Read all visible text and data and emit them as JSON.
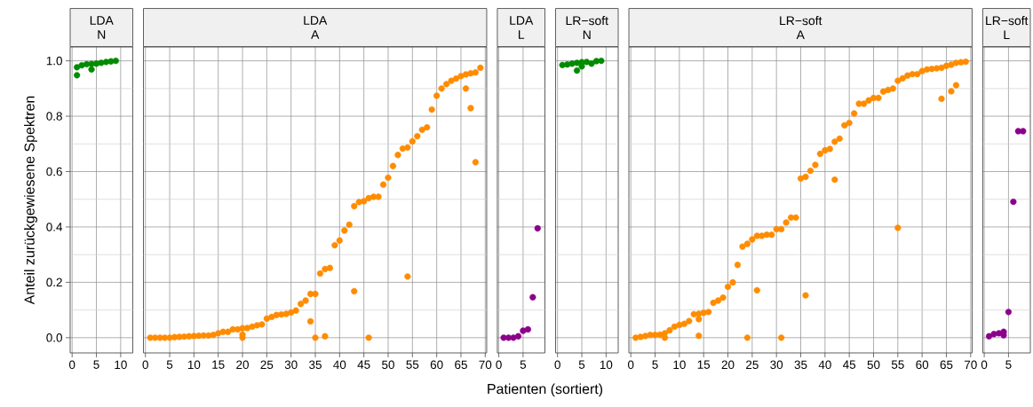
{
  "chart_data": [
    {
      "type": "scatter",
      "title": "LDA",
      "subtitle": "N",
      "ylabel": "Anteil zurückgewiesene Spektren",
      "color": "#008b00",
      "marker": "circle",
      "grid": true,
      "xlim": [
        -0.4,
        12.5
      ],
      "ylim": [
        -0.055,
        1.05
      ],
      "xticks": [
        0,
        5,
        10
      ],
      "yticks": [
        {
          "value": 0,
          "label": "0.0"
        },
        {
          "value": 0.1,
          "label": null
        },
        0.2,
        {
          "value": 0.3,
          "label": null
        },
        0.4,
        {
          "value": 0.5,
          "label": null
        },
        0.6,
        {
          "value": 0.7,
          "label": null
        },
        0.8,
        {
          "value": 0.9,
          "label": null
        },
        {
          "value": 1,
          "label": "1.0"
        }
      ],
      "x": [
        1,
        1,
        2,
        3,
        4,
        4,
        5,
        6,
        7,
        8,
        9
      ],
      "values": [
        0.948,
        0.977,
        0.984,
        0.988,
        0.989,
        0.969,
        0.99,
        0.993,
        0.996,
        0.998,
        1.0
      ]
    },
    {
      "type": "scatter",
      "title": "LDA",
      "subtitle": "A",
      "color": "#ff8c00",
      "marker": "circle",
      "grid": true,
      "tick_labels": "x",
      "xlim": [
        -0.4,
        70.3
      ],
      "ylim": [
        -0.055,
        1.05
      ],
      "xticks": [
        0,
        5,
        10,
        15,
        20,
        25,
        30,
        35,
        40,
        45,
        50,
        55,
        60,
        65,
        70
      ],
      "yticks": [
        0,
        {
          "value": 0.1,
          "label": null
        },
        0.2,
        {
          "value": 0.3,
          "label": null
        },
        0.4,
        {
          "value": 0.5,
          "label": null
        },
        0.6,
        {
          "value": 0.7,
          "label": null
        },
        0.8,
        {
          "value": 0.9,
          "label": null
        },
        1
      ],
      "x": [
        1,
        2,
        3,
        4,
        5,
        6,
        7,
        8,
        9,
        10,
        11,
        12,
        13,
        14,
        15,
        16,
        17,
        18,
        19,
        20,
        21,
        22,
        23,
        24,
        25,
        26,
        27,
        28,
        29,
        30,
        31,
        32,
        33,
        34,
        35,
        36,
        37,
        38,
        39,
        40,
        41,
        42,
        43,
        44,
        45,
        46,
        47,
        48,
        49,
        50,
        51,
        52,
        53,
        54,
        55,
        56,
        57,
        58,
        59,
        60,
        61,
        62,
        63,
        64,
        65,
        66,
        67,
        68,
        69,
        20,
        20,
        34,
        35,
        37,
        43,
        46,
        54,
        66,
        67,
        68
      ],
      "values": [
        0,
        0,
        0,
        0,
        0,
        0.002,
        0.003,
        0.004,
        0.005,
        0.006,
        0.007,
        0.008,
        0.008,
        0.01,
        0.016,
        0.021,
        0.021,
        0.03,
        0.03,
        0.034,
        0.035,
        0.04,
        0.045,
        0.048,
        0.069,
        0.075,
        0.082,
        0.084,
        0.086,
        0.091,
        0.098,
        0.122,
        0.134,
        0.158,
        0.158,
        0.232,
        0.248,
        0.252,
        0.334,
        0.351,
        0.387,
        0.408,
        0.475,
        0.49,
        0.493,
        0.504,
        0.509,
        0.509,
        0.553,
        0.578,
        0.62,
        0.66,
        0.683,
        0.687,
        0.709,
        0.728,
        0.751,
        0.76,
        0.824,
        0.874,
        0.9,
        0.916,
        0.928,
        0.936,
        0.945,
        0.951,
        0.955,
        0.958,
        0.975,
        0,
        0.011,
        0.059,
        0,
        0.005,
        0.168,
        0,
        0.221,
        0.9,
        0.829,
        0.634
      ]
    },
    {
      "type": "scatter",
      "title": "LDA",
      "subtitle": "L",
      "xlabel": "Patienten (sortiert)",
      "color": "#8b008b",
      "marker": "circle",
      "grid": true,
      "tick_labels": "x",
      "xlim": [
        -0.3,
        9.5
      ],
      "ylim": [
        -0.055,
        1.05
      ],
      "xticks": [
        0,
        5
      ],
      "yticks": [
        0,
        {
          "value": 0.1,
          "label": null
        },
        0.2,
        {
          "value": 0.3,
          "label": null
        },
        0.4,
        {
          "value": 0.5,
          "label": null
        },
        0.6,
        {
          "value": 0.7,
          "label": null
        },
        0.8,
        {
          "value": 0.9,
          "label": null
        },
        1
      ],
      "x": [
        1,
        2,
        3,
        4,
        5,
        6,
        7,
        8
      ],
      "values": [
        0,
        0,
        0,
        0.005,
        0.025,
        0.03,
        0.146,
        0.395
      ]
    },
    {
      "type": "scatter",
      "title": "LR−soft",
      "subtitle": "N",
      "color": "#008b00",
      "marker": "circle",
      "grid": true,
      "tick_labels": "x",
      "xlim": [
        -0.4,
        12.5
      ],
      "ylim": [
        -0.055,
        1.05
      ],
      "xticks": [
        0,
        5,
        10
      ],
      "yticks": [
        0,
        {
          "value": 0.1,
          "label": null
        },
        0.2,
        {
          "value": 0.3,
          "label": null
        },
        0.4,
        {
          "value": 0.5,
          "label": null
        },
        0.6,
        {
          "value": 0.7,
          "label": null
        },
        0.8,
        {
          "value": 0.9,
          "label": null
        },
        1
      ],
      "x": [
        1,
        2,
        3,
        4,
        4,
        5,
        5,
        6,
        7,
        8,
        9
      ],
      "values": [
        0.985,
        0.987,
        0.99,
        0.993,
        0.965,
        0.995,
        0.98,
        0.996,
        0.99,
        0.999,
        1.0
      ]
    },
    {
      "type": "scatter",
      "title": "LR−soft",
      "subtitle": "A",
      "color": "#ff8c00",
      "marker": "circle",
      "grid": true,
      "tick_labels": "x",
      "xlim": [
        -0.4,
        70.3
      ],
      "ylim": [
        -0.055,
        1.05
      ],
      "xticks": [
        0,
        5,
        10,
        15,
        20,
        25,
        30,
        35,
        40,
        45,
        50,
        55,
        60,
        65,
        70
      ],
      "yticks": [
        0,
        {
          "value": 0.1,
          "label": null
        },
        0.2,
        {
          "value": 0.3,
          "label": null
        },
        0.4,
        {
          "value": 0.5,
          "label": null
        },
        0.6,
        {
          "value": 0.7,
          "label": null
        },
        0.8,
        {
          "value": 0.9,
          "label": null
        },
        1
      ],
      "x": [
        1,
        2,
        3,
        4,
        5,
        6,
        7,
        8,
        9,
        10,
        11,
        12,
        13,
        14,
        15,
        16,
        17,
        18,
        19,
        20,
        21,
        22,
        23,
        24,
        25,
        26,
        27,
        28,
        29,
        30,
        31,
        32,
        33,
        34,
        35,
        36,
        37,
        38,
        39,
        40,
        41,
        42,
        43,
        44,
        45,
        46,
        47,
        48,
        49,
        50,
        51,
        52,
        53,
        54,
        55,
        56,
        57,
        58,
        59,
        60,
        61,
        62,
        63,
        64,
        65,
        66,
        67,
        68,
        69,
        7,
        14,
        14,
        24,
        26,
        31,
        36,
        42,
        55,
        64,
        66,
        67
      ],
      "values": [
        0,
        0.003,
        0.006,
        0.01,
        0.01,
        0.011,
        0.016,
        0.027,
        0.04,
        0.046,
        0.05,
        0.06,
        0.085,
        0.086,
        0.09,
        0.093,
        0.126,
        0.134,
        0.145,
        0.184,
        0.2,
        0.263,
        0.329,
        0.339,
        0.355,
        0.368,
        0.368,
        0.372,
        0.372,
        0.392,
        0.392,
        0.416,
        0.434,
        0.434,
        0.575,
        0.581,
        0.603,
        0.624,
        0.664,
        0.677,
        0.682,
        0.708,
        0.719,
        0.767,
        0.776,
        0.81,
        0.845,
        0.845,
        0.857,
        0.866,
        0.866,
        0.889,
        0.895,
        0.9,
        0.928,
        0.937,
        0.947,
        0.952,
        0.952,
        0.963,
        0.969,
        0.971,
        0.973,
        0.975,
        0.982,
        0.986,
        0.993,
        0.995,
        0.997,
        0,
        0.067,
        0.007,
        0,
        0.171,
        0,
        0.153,
        0.571,
        0.397,
        0.863,
        0.89,
        0.912
      ]
    },
    {
      "type": "scatter",
      "title": "LR−soft",
      "subtitle": "L",
      "color": "#8b008b",
      "marker": "circle",
      "grid": true,
      "tick_labels": "x",
      "xlim": [
        -0.3,
        9.5
      ],
      "ylim": [
        -0.055,
        1.05
      ],
      "xticks": [
        0,
        5
      ],
      "yticks": [
        0,
        {
          "value": 0.1,
          "label": null
        },
        0.2,
        {
          "value": 0.3,
          "label": null
        },
        0.4,
        {
          "value": 0.5,
          "label": null
        },
        0.6,
        {
          "value": 0.7,
          "label": null
        },
        0.8,
        {
          "value": 0.9,
          "label": null
        },
        1
      ],
      "x": [
        1,
        2,
        3,
        4,
        4,
        5,
        6,
        7,
        8
      ],
      "values": [
        0.005,
        0.013,
        0.016,
        0.021,
        0.009,
        0.093,
        0.491,
        0.746,
        0.746
      ]
    }
  ]
}
